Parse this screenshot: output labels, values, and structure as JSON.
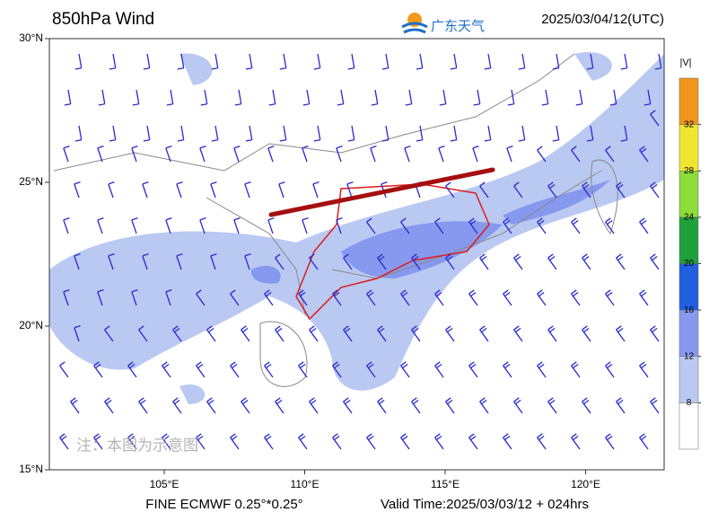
{
  "header": {
    "title": "850hPa Wind",
    "logo": "广东天气",
    "time": "2025/03/04/12(UTC)"
  },
  "map": {
    "lat_ticks": [
      {
        "value": 30,
        "label": "30°N"
      },
      {
        "value": 25,
        "label": "25°N"
      },
      {
        "value": 20,
        "label": "20°N"
      },
      {
        "value": 15,
        "label": "15°N"
      }
    ],
    "lon_ticks": [
      {
        "value": 105,
        "label": "105°E"
      },
      {
        "value": 110,
        "label": "110°E"
      },
      {
        "value": 115,
        "label": "115°E"
      },
      {
        "value": 120,
        "label": "120°E"
      }
    ],
    "note": "注：本图为示意图"
  },
  "colorbar": {
    "label": "|V|",
    "ticks": [
      8,
      12,
      16,
      20,
      24,
      28,
      32
    ],
    "colors": [
      "#ffffff",
      "#b9c9f2",
      "#8799ee",
      "#1f5fe0",
      "#1fa03c",
      "#8cdc3c",
      "#f0e632",
      "#f0961e"
    ]
  },
  "footer": {
    "model": "FINE ECMWF 0.25°*0.25°",
    "valid": "Valid Time:2025/03/03/12 + 024hrs"
  }
}
